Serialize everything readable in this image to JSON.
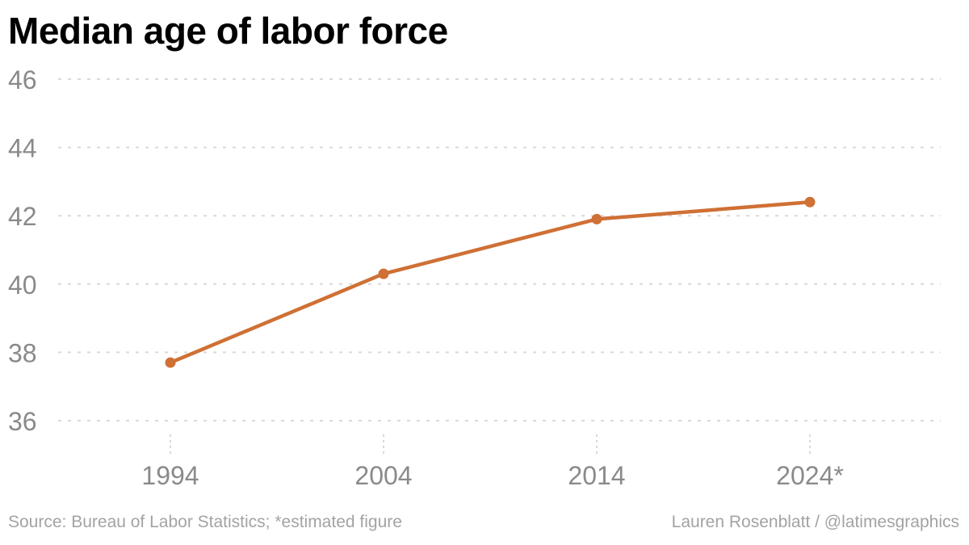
{
  "chart_data": {
    "type": "line",
    "title": "Median age of labor force",
    "categories": [
      "1994",
      "2004",
      "2014",
      "2024*"
    ],
    "series": [
      {
        "values": [
          37.7,
          40.3,
          41.9,
          42.4
        ]
      }
    ],
    "xlabel": "",
    "ylabel": "",
    "ylim": [
      36,
      46
    ],
    "yticks": [
      36,
      38,
      40,
      42,
      44,
      46
    ],
    "grid": true,
    "legend": "none"
  },
  "footer": {
    "source": "Source: Bureau of Labor Statistics; *estimated figure",
    "credit": "Lauren Rosenblatt / @latimesgraphics"
  },
  "colors": {
    "line": "#cf7035",
    "grid": "#d9d9d9",
    "tick_text": "#8a8a8a"
  }
}
